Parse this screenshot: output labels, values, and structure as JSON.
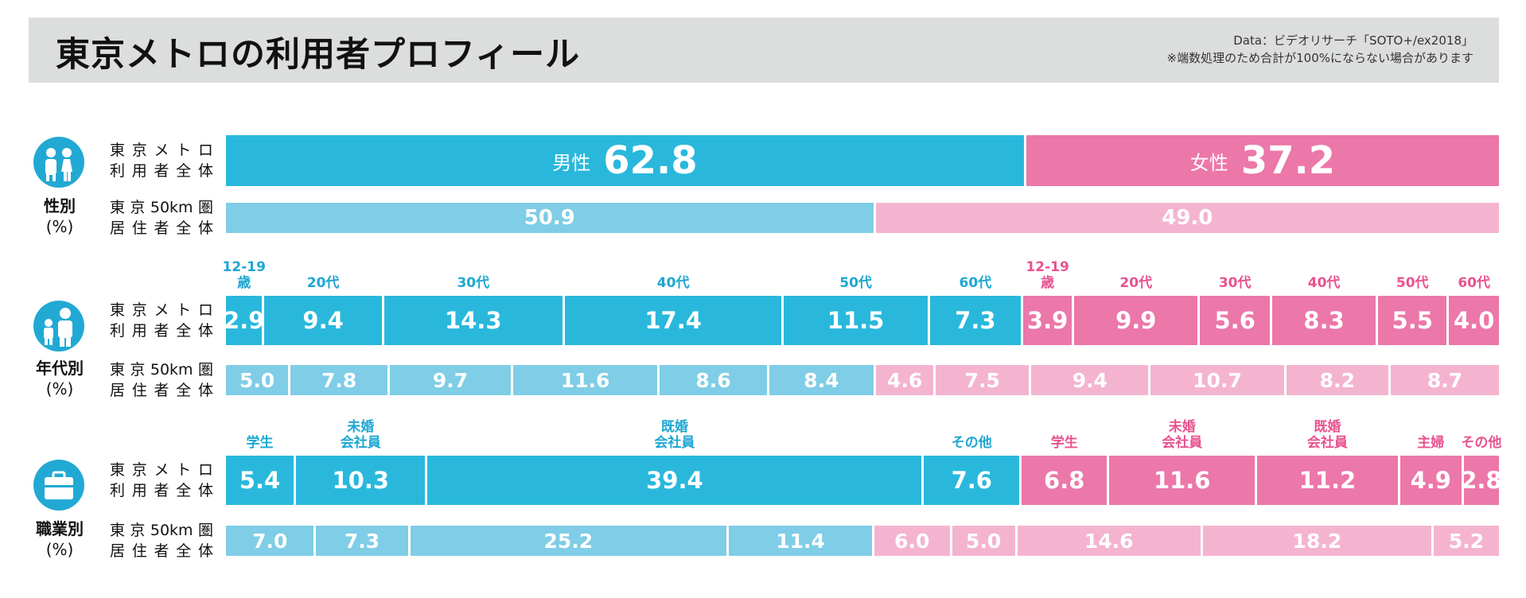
{
  "header": {
    "title": "東京メトロの利用者プロフィール",
    "source_line1": "Data：ビデオリサーチ「SOTO+/ex2018」",
    "source_line2": "※端数処理のため合計が100%にならない場合があります"
  },
  "row_labels": {
    "metro_line1": "東京メトロ",
    "metro_line2": "利用者全体",
    "area_line1": "東京50km圏",
    "area_line2": "居住者全体"
  },
  "colors": {
    "male": "#29b8dc",
    "male_ref": "#7fcde6",
    "female": "#ec77a9",
    "female_ref": "#f4b4cf",
    "icon": "#21a9d4"
  },
  "chart_data": [
    {
      "type": "bar",
      "name": "性別",
      "label_main": "性別",
      "label_unit": "(%)",
      "icon": "two-people-icon",
      "categories": [
        {
          "label": "男性",
          "group": "male"
        },
        {
          "label": "女性",
          "group": "female"
        }
      ],
      "series": [
        {
          "name": "東京メトロ利用者全体",
          "values": [
            62.8,
            37.2
          ]
        },
        {
          "name": "東京50km圏居住者全体",
          "values": [
            50.9,
            49.0
          ]
        }
      ]
    },
    {
      "type": "bar",
      "name": "年代別",
      "label_main": "年代別",
      "label_unit": "(%)",
      "icon": "adult-child-icon",
      "categories": [
        {
          "label": "12-19\n歳",
          "group": "male"
        },
        {
          "label": "20代",
          "group": "male"
        },
        {
          "label": "30代",
          "group": "male"
        },
        {
          "label": "40代",
          "group": "male"
        },
        {
          "label": "50代",
          "group": "male"
        },
        {
          "label": "60代",
          "group": "male"
        },
        {
          "label": "12-19\n歳",
          "group": "female"
        },
        {
          "label": "20代",
          "group": "female"
        },
        {
          "label": "30代",
          "group": "female"
        },
        {
          "label": "40代",
          "group": "female"
        },
        {
          "label": "50代",
          "group": "female"
        },
        {
          "label": "60代",
          "group": "female"
        }
      ],
      "series": [
        {
          "name": "東京メトロ利用者全体",
          "values": [
            2.9,
            9.4,
            14.3,
            17.4,
            11.5,
            7.3,
            3.9,
            9.9,
            5.6,
            8.3,
            5.5,
            4.0
          ]
        },
        {
          "name": "東京50km圏居住者全体",
          "values": [
            5.0,
            7.8,
            9.7,
            11.6,
            8.6,
            8.4,
            4.6,
            7.5,
            9.4,
            10.7,
            8.2,
            8.7
          ]
        }
      ]
    },
    {
      "type": "bar",
      "name": "職業別",
      "label_main": "職業別",
      "label_unit": "(%)",
      "icon": "briefcase-icon",
      "categories": [
        {
          "label": "学生",
          "group": "male"
        },
        {
          "label": "未婚\n会社員",
          "group": "male"
        },
        {
          "label": "既婚\n会社員",
          "group": "male"
        },
        {
          "label": "その他",
          "group": "male"
        },
        {
          "label": "学生",
          "group": "female"
        },
        {
          "label": "未婚\n会社員",
          "group": "female"
        },
        {
          "label": "既婚\n会社員",
          "group": "female"
        },
        {
          "label": "主婦",
          "group": "female"
        },
        {
          "label": "その他",
          "group": "female"
        }
      ],
      "series": [
        {
          "name": "東京メトロ利用者全体",
          "values": [
            5.4,
            10.3,
            39.4,
            7.6,
            6.8,
            11.6,
            11.2,
            4.9,
            2.8
          ]
        },
        {
          "name": "東京50km圏居住者全体",
          "values": [
            7.0,
            7.3,
            25.2,
            11.4,
            6.0,
            5.0,
            14.6,
            18.2,
            5.2
          ]
        }
      ]
    }
  ]
}
